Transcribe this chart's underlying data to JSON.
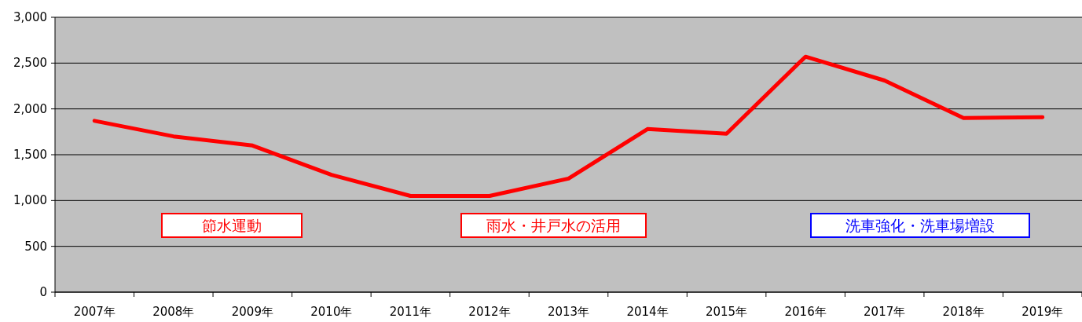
{
  "chart_data": {
    "type": "line",
    "categories": [
      "2007年",
      "2008年",
      "2009年",
      "2010年",
      "2011年",
      "2012年",
      "2013年",
      "2014年",
      "2015年",
      "2016年",
      "2017年",
      "2018年",
      "2019年"
    ],
    "series": [
      {
        "color": "#ff0000",
        "values": [
          1870,
          1700,
          1600,
          1280,
          1050,
          1050,
          1240,
          1780,
          1730,
          2570,
          2310,
          1900,
          1910
        ]
      }
    ],
    "ylim": [
      0,
      3000
    ],
    "yticks": [
      0,
      {
        "value": 500,
        "label": "500"
      },
      {
        "value": 1000,
        "label": "1,000"
      },
      {
        "value": 1500,
        "label": "1,500"
      },
      {
        "value": 2000,
        "label": "2,000"
      },
      {
        "value": 2500,
        "label": "2,500"
      },
      {
        "value": 3000,
        "label": "3,000"
      }
    ],
    "grid": "y",
    "marker": "none",
    "line_style": "solid",
    "annotations": [
      "節水運動",
      "雨水・井戸水の活用",
      "洗車強化・洗車場増設"
    ]
  }
}
